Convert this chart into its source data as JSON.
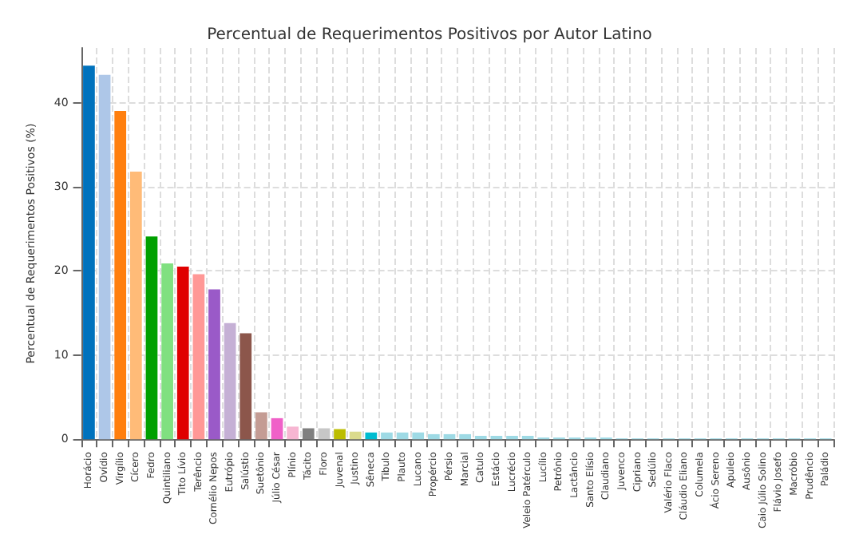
{
  "chart_data": {
    "type": "bar",
    "title": "Percentual de Requerimentos Positivos por Autor Latino",
    "ylabel": "Percentual de Requerimentos Positivos (%)",
    "categories": [
      "Horácio",
      "Ovídio",
      "Virgílio",
      "Cícero",
      "Fedro",
      "Quintiliano",
      "Tito Lívio",
      "Terêncio",
      "Cornélio Nepos",
      "Eutrópio",
      "Salústio",
      "Suetônio",
      "Júlio César",
      "Plínio",
      "Tácito",
      "Floro",
      "Juvenal",
      "Justino",
      "Sêneca",
      "Tibulo",
      "Plauto",
      "Lucano",
      "Propércio",
      "Pérsio",
      "Marcial",
      "Catulo",
      "Estácio",
      "Lucrécio",
      "Veleio Patérculo",
      "Lucílio",
      "Petrônio",
      "Lactâncio",
      "Santo Elísio",
      "Claudiano",
      "Juvenco",
      "Cipriano",
      "Sedúlio",
      "Valério Flaco",
      "Cláudio Eliano",
      "Columela",
      "Ácio Sereno",
      "Apuleio",
      "Ausônio",
      "Caio Júlio Solino",
      "Flávio Josefo",
      "Macróbio",
      "Prudêncio",
      "Paládio"
    ],
    "values": [
      44.4,
      43.3,
      39.0,
      31.8,
      24.1,
      20.9,
      20.5,
      19.6,
      17.8,
      13.8,
      12.6,
      3.2,
      2.5,
      1.5,
      1.3,
      1.3,
      1.2,
      0.9,
      0.8,
      0.8,
      0.8,
      0.8,
      0.6,
      0.6,
      0.6,
      0.4,
      0.4,
      0.4,
      0.4,
      0.2,
      0.2,
      0.2,
      0.2,
      0.2,
      0.1,
      0.1,
      0.1,
      0.1,
      0.1,
      0.1,
      0.1,
      0.1,
      0.1,
      0.1,
      0.1,
      0.1,
      0.1,
      0.1
    ],
    "colors": [
      "#0072bd",
      "#aec7e8",
      "#ff7f0e",
      "#ffbb78",
      "#00a000",
      "#80e080",
      "#e00000",
      "#ff9896",
      "#9a5ac8",
      "#c5b0d5",
      "#8c564b",
      "#c49c94",
      "#f060c8",
      "#f7b6d2",
      "#7f7f7f",
      "#c7c7c7",
      "#bcbd00",
      "#dbdb8d",
      "#00bcd0",
      "#9edae5",
      "#9edae5",
      "#9edae5",
      "#9edae5",
      "#9edae5",
      "#9edae5",
      "#9edae5",
      "#9edae5",
      "#9edae5",
      "#9edae5",
      "#9edae5",
      "#9edae5",
      "#9edae5",
      "#9edae5",
      "#9edae5",
      "#9edae5",
      "#9edae5",
      "#9edae5",
      "#9edae5",
      "#9edae5",
      "#9edae5",
      "#9edae5",
      "#9edae5",
      "#9edae5",
      "#9edae5",
      "#9edae5",
      "#9edae5",
      "#9edae5",
      "#9edae5"
    ],
    "ylim": [
      0,
      46.5
    ],
    "yticks": [
      0,
      10,
      20,
      30,
      40
    ],
    "grid": true
  }
}
